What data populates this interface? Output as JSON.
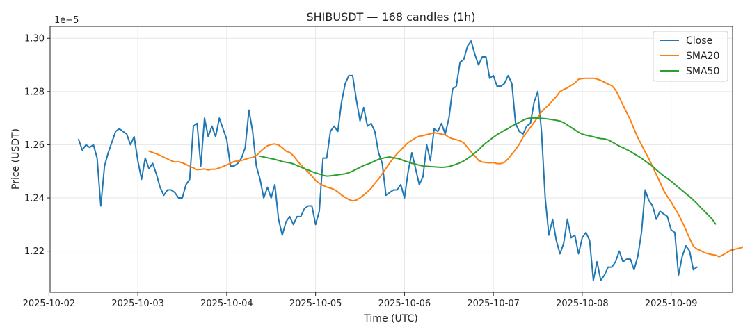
{
  "chart_data": {
    "type": "line",
    "title": "SHIBUSDT — 168 candles (1h)",
    "xlabel": "Time (UTC)",
    "ylabel": "Price (USDT)",
    "y_scale_note": "1e−5",
    "x_unit": "hour",
    "x_ticks": [
      {
        "label": "2025-10-02",
        "hour": 0
      },
      {
        "label": "2025-10-03",
        "hour": 24
      },
      {
        "label": "2025-10-04",
        "hour": 48
      },
      {
        "label": "2025-10-05",
        "hour": 72
      },
      {
        "label": "2025-10-06",
        "hour": 96
      },
      {
        "label": "2025-10-07",
        "hour": 120
      },
      {
        "label": "2025-10-08",
        "hour": 144
      },
      {
        "label": "2025-10-09",
        "hour": 168
      }
    ],
    "xlim": [
      0.3,
      184.6
    ],
    "ylim": [
      1.2045,
      1.3045
    ],
    "y_ticks": [
      1.22,
      1.24,
      1.26,
      1.28,
      1.3
    ],
    "y_tick_labels": [
      "1.22",
      "1.24",
      "1.26",
      "1.28",
      "1.30"
    ],
    "grid": true,
    "legend_position": "top-right",
    "series": [
      {
        "name": "Close",
        "color": "#1f77b4",
        "start_hour": 8,
        "values": [
          1.262,
          1.258,
          1.26,
          1.259,
          1.26,
          1.255,
          1.237,
          1.252,
          1.257,
          1.261,
          1.265,
          1.266,
          1.265,
          1.264,
          1.26,
          1.263,
          1.254,
          1.247,
          1.255,
          1.251,
          1.253,
          1.249,
          1.244,
          1.241,
          1.243,
          1.243,
          1.242,
          1.24,
          1.24,
          1.245,
          1.247,
          1.267,
          1.268,
          1.252,
          1.27,
          1.263,
          1.267,
          1.263,
          1.27,
          1.266,
          1.262,
          1.252,
          1.252,
          1.253,
          1.255,
          1.259,
          1.273,
          1.265,
          1.252,
          1.247,
          1.24,
          1.244,
          1.24,
          1.245,
          1.232,
          1.226,
          1.231,
          1.233,
          1.23,
          1.233,
          1.233,
          1.236,
          1.237,
          1.237,
          1.23,
          1.235,
          1.255,
          1.255,
          1.265,
          1.267,
          1.265,
          1.276,
          1.283,
          1.286,
          1.286,
          1.277,
          1.269,
          1.274,
          1.267,
          1.268,
          1.265,
          1.257,
          1.253,
          1.241,
          1.242,
          1.243,
          1.243,
          1.245,
          1.24,
          1.25,
          1.257,
          1.251,
          1.245,
          1.248,
          1.26,
          1.254,
          1.266,
          1.265,
          1.268,
          1.264,
          1.27,
          1.281,
          1.282,
          1.291,
          1.292,
          1.297,
          1.299,
          1.294,
          1.29,
          1.293,
          1.293,
          1.285,
          1.286,
          1.282,
          1.282,
          1.283,
          1.286,
          1.283,
          1.268,
          1.265,
          1.264,
          1.267,
          1.268,
          1.276,
          1.28,
          1.265,
          1.24,
          1.226,
          1.232,
          1.224,
          1.219,
          1.223,
          1.232,
          1.225,
          1.226,
          1.219,
          1.225,
          1.227,
          1.224,
          1.209,
          1.216,
          1.209,
          1.211,
          1.214,
          1.214,
          1.216,
          1.22,
          1.216,
          1.217,
          1.217,
          1.213,
          1.218,
          1.227,
          1.243,
          1.239,
          1.237,
          1.232,
          1.235,
          1.234,
          1.233,
          1.228,
          1.227,
          1.211,
          1.218,
          1.222,
          1.22,
          1.213,
          1.214
        ]
      },
      {
        "name": "SMA20",
        "color": "#ff7f0e",
        "start_hour": 27,
        "values": [
          1.2576,
          1.2571,
          1.2566,
          1.256,
          1.2553,
          1.2547,
          1.254,
          1.2535,
          1.2536,
          1.2532,
          1.2526,
          1.2519,
          1.2513,
          1.2506,
          1.2507,
          1.2509,
          1.2505,
          1.2508,
          1.2508,
          1.2513,
          1.2518,
          1.2524,
          1.253,
          1.2537,
          1.2539,
          1.2541,
          1.2545,
          1.255,
          1.2552,
          1.2559,
          1.2573,
          1.2586,
          1.2596,
          1.2601,
          1.2603,
          1.2599,
          1.2589,
          1.2576,
          1.2571,
          1.2559,
          1.2541,
          1.2524,
          1.2511,
          1.2497,
          1.2482,
          1.2466,
          1.2455,
          1.2447,
          1.2441,
          1.2437,
          1.2432,
          1.2423,
          1.2411,
          1.2402,
          1.2394,
          1.2389,
          1.2392,
          1.24,
          1.2411,
          1.2423,
          1.2436,
          1.2455,
          1.2471,
          1.2491,
          1.2511,
          1.2531,
          1.255,
          1.2566,
          1.258,
          1.2595,
          1.2608,
          1.2617,
          1.2626,
          1.2632,
          1.2634,
          1.2638,
          1.2641,
          1.2645,
          1.2643,
          1.264,
          1.2637,
          1.2628,
          1.2622,
          1.2619,
          1.2615,
          1.2607,
          1.259,
          1.2573,
          1.2558,
          1.2541,
          1.2535,
          1.2533,
          1.2532,
          1.2533,
          1.2529,
          1.2529,
          1.2534,
          1.2547,
          1.2565,
          1.2582,
          1.2602,
          1.2628,
          1.2647,
          1.2665,
          1.2684,
          1.2704,
          1.2723,
          1.2738,
          1.275,
          1.2767,
          1.2781,
          1.28,
          1.2808,
          1.2814,
          1.2823,
          1.2832,
          1.2846,
          1.2849,
          1.285,
          1.285,
          1.285,
          1.2847,
          1.2842,
          1.2835,
          1.2828,
          1.2822,
          1.2806,
          1.2779,
          1.2749,
          1.2721,
          1.2693,
          1.2659,
          1.2627,
          1.26,
          1.2573,
          1.2547,
          1.2518,
          1.2488,
          1.2459,
          1.2428,
          1.2405,
          1.2385,
          1.2361,
          1.2338,
          1.231,
          1.228,
          1.2247,
          1.2219,
          1.2208,
          1.2202,
          1.2194,
          1.219,
          1.2187,
          1.2185,
          1.2179,
          1.2186,
          1.2194,
          1.2203,
          1.2206,
          1.221,
          1.2213,
          1.2221,
          1.223,
          1.2238,
          1.2241,
          1.2243,
          1.2246,
          1.225,
          1.2249,
          1.2248
        ]
      },
      {
        "name": "SMA50",
        "color": "#2ca02c",
        "start_hour": 57,
        "values": [
          1.2557,
          1.2554,
          1.2551,
          1.2548,
          1.2545,
          1.2541,
          1.2537,
          1.2534,
          1.2532,
          1.2528,
          1.2522,
          1.2516,
          1.251,
          1.2505,
          1.2499,
          1.2494,
          1.249,
          1.2485,
          1.2482,
          1.2483,
          1.2485,
          1.2487,
          1.2489,
          1.2491,
          1.2495,
          1.2501,
          1.2508,
          1.2515,
          1.2522,
          1.2527,
          1.2532,
          1.2539,
          1.2545,
          1.2549,
          1.2552,
          1.2554,
          1.2551,
          1.2549,
          1.2545,
          1.2539,
          1.2535,
          1.253,
          1.2527,
          1.2523,
          1.252,
          1.2519,
          1.2518,
          1.2517,
          1.2516,
          1.2515,
          1.2516,
          1.2518,
          1.2522,
          1.2527,
          1.2532,
          1.2539,
          1.2548,
          1.2558,
          1.2569,
          1.2581,
          1.2595,
          1.2607,
          1.2617,
          1.2628,
          1.2638,
          1.2646,
          1.2654,
          1.2661,
          1.267,
          1.2677,
          1.2684,
          1.2692,
          1.2698,
          1.27,
          1.2701,
          1.27,
          1.2699,
          1.2698,
          1.2696,
          1.2694,
          1.2692,
          1.2689,
          1.2683,
          1.2674,
          1.2665,
          1.2656,
          1.2647,
          1.264,
          1.2636,
          1.2633,
          1.263,
          1.2626,
          1.2623,
          1.2622,
          1.2618,
          1.2611,
          1.2603,
          1.2595,
          1.2589,
          1.2582,
          1.2575,
          1.2566,
          1.2558,
          1.2549,
          1.2539,
          1.2529,
          1.2519,
          1.2506,
          1.2494,
          1.2483,
          1.2473,
          1.2463,
          1.2451,
          1.2439,
          1.2428,
          1.2416,
          1.2405,
          1.2392,
          1.2379,
          1.2364,
          1.235,
          1.2336,
          1.2322,
          1.2302
        ]
      }
    ]
  }
}
